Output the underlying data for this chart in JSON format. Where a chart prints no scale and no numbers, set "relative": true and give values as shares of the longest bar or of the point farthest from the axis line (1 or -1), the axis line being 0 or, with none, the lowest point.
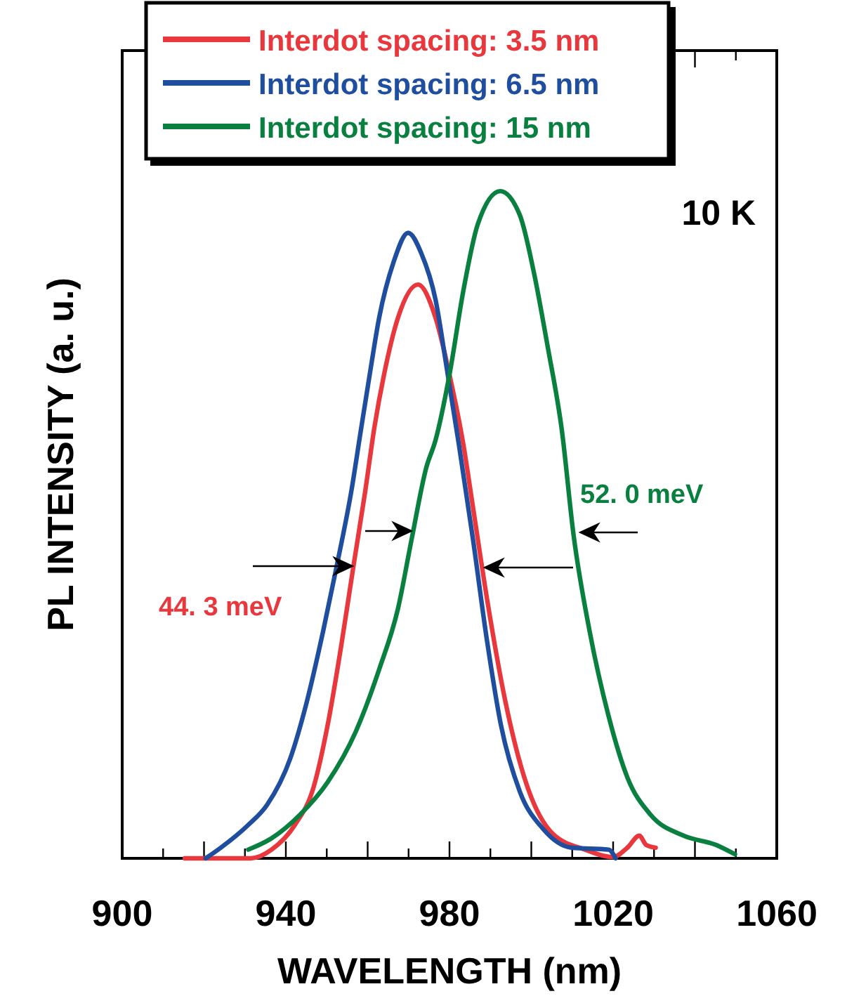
{
  "chart_data": {
    "type": "line",
    "xlabel": "WAVELENGTH (nm)",
    "ylabel": "PL INTENSITY (a. u.)",
    "relative": true,
    "xlim": [
      900,
      1060
    ],
    "xticks": [
      900,
      {
        "value": 910,
        "label": null
      },
      {
        "value": 920,
        "label": null
      },
      {
        "value": 930,
        "label": null
      },
      940,
      {
        "value": 950,
        "label": null
      },
      {
        "value": 960,
        "label": null
      },
      {
        "value": 970,
        "label": null
      },
      980,
      {
        "value": 990,
        "label": null
      },
      {
        "value": 1000,
        "label": null
      },
      {
        "value": 1010,
        "label": null
      },
      1020,
      {
        "value": 1030,
        "label": null
      },
      {
        "value": 1040,
        "label": null
      },
      {
        "value": 1050,
        "label": null
      },
      1060
    ],
    "legend": "top left",
    "grid": false,
    "line_style": "solid",
    "annotations": [
      "10 K",
      "44. 3 meV",
      "52. 0 meV"
    ],
    "series": [
      {
        "name": "Interdot spacing: 3.5 nm",
        "color": "#e8383d",
        "x": [
          915.3,
          931.4,
          936.5,
          942.2,
          946.8,
          950.2,
          953.7,
          956.5,
          959.4,
          961.7,
          964.0,
          967.4,
          972.3,
          976.6,
          980.0,
          983.4,
          985.7,
          989.2,
          993.7,
          998.3,
          1005.2,
          1013.2,
          1020.0,
          1023.5,
          1026.4,
          1028.1,
          1030.4
        ],
        "values": [
          0,
          0,
          0.013,
          0.05,
          0.107,
          0.199,
          0.325,
          0.437,
          0.55,
          0.648,
          0.725,
          0.81,
          0.86,
          0.81,
          0.725,
          0.62,
          0.528,
          0.388,
          0.234,
          0.121,
          0.037,
          0.013,
          0.002,
          0.016,
          0.034,
          0.02,
          0.016
        ]
      },
      {
        "name": "Interdot spacing: 6.5 nm",
        "color": "#1f4e9e",
        "x": [
          920.4,
          923.9,
          930.8,
          935.4,
          941.1,
          945.1,
          949.1,
          952.5,
          956.0,
          958.3,
          960.5,
          962.8,
          966.3,
          969.9,
          973.1,
          976.6,
          979.4,
          982.3,
          985.7,
          989.2,
          992.6,
          997.2,
          1002.9,
          1009.8,
          1018.9,
          1020.6
        ],
        "values": [
          0,
          0.015,
          0.05,
          0.08,
          0.15,
          0.234,
          0.34,
          0.44,
          0.55,
          0.64,
          0.725,
          0.81,
          0.893,
          0.9375,
          0.907,
          0.837,
          0.732,
          0.62,
          0.48,
          0.325,
          0.199,
          0.1,
          0.044,
          0.016,
          0.013,
          0
        ]
      },
      {
        "name": "Interdot spacing: 15 nm",
        "color": "#0a8040",
        "x": [
          930.8,
          936.5,
          943.4,
          950.2,
          957.1,
          962.8,
          967.4,
          970.8,
          974.3,
          976.6,
          980.0,
          983.4,
          986.9,
          992.4,
          997.2,
          1000.6,
          1004.0,
          1007.5,
          1010.3,
          1014.3,
          1018.9,
          1023.5,
          1029.2,
          1037.2,
          1045.2,
          1049.8
        ],
        "values": [
          0.013,
          0.03,
          0.065,
          0.114,
          0.19,
          0.283,
          0.374,
          0.48,
          0.585,
          0.627,
          0.725,
          0.851,
          0.95,
          1.0,
          0.964,
          0.879,
          0.767,
          0.64,
          0.486,
          0.339,
          0.213,
          0.121,
          0.065,
          0.034,
          0.02,
          0.006
        ]
      }
    ]
  }
}
